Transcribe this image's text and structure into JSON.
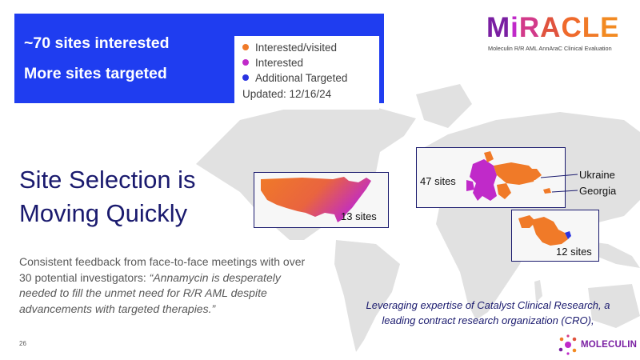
{
  "callout": {
    "line1": "~70 sites interested",
    "line2": "More sites targeted"
  },
  "legend": {
    "items": [
      {
        "label": "Interested/visited",
        "color": "#f07a28"
      },
      {
        "label": "Interested",
        "color": "#c02ac9"
      },
      {
        "label": "Additional Targeted",
        "color": "#2a33e0"
      }
    ],
    "updated": "Updated: 12/16/24"
  },
  "logo": {
    "word": "MiRACLE",
    "letters": [
      {
        "ch": "M",
        "color": "#7a1fa2"
      },
      {
        "ch": "i",
        "color": "#c02ac9"
      },
      {
        "ch": "R",
        "color": "#d23a8a"
      },
      {
        "ch": "A",
        "color": "#e0533e"
      },
      {
        "ch": "C",
        "color": "#ef6a2c"
      },
      {
        "ch": "L",
        "color": "#f07a28"
      },
      {
        "ch": "E",
        "color": "#f28a22"
      }
    ],
    "subtitle": "Moleculin R/R AML AnnAraC Clinical Evaluation"
  },
  "title": {
    "line1": "Site Selection is",
    "line2": "Moving Quickly"
  },
  "body": {
    "lead": "Consistent feedback from face-to-face meetings with over 30 potential investigators: ",
    "quote": "“Annamycin is desperately needed to fill the unmet need for R/R AML despite advancements with targeted therapies.”"
  },
  "regions": {
    "us_label": "13 sites",
    "europe_label": "47 sites",
    "ukraine_label": "Ukraine",
    "georgia_label": "Georgia",
    "middle_east_label": "12 sites"
  },
  "note": "Leveraging expertise of Catalyst Clinical Research, a leading contract research organization (CRO),",
  "page_number": "26",
  "brand": "MOLECULIN",
  "colors": {
    "callout_bg": "#1f3df0",
    "title": "#1a1a6e",
    "orange": "#f07a28",
    "magenta": "#c02ac9",
    "map_gray": "#d9d9d9"
  }
}
